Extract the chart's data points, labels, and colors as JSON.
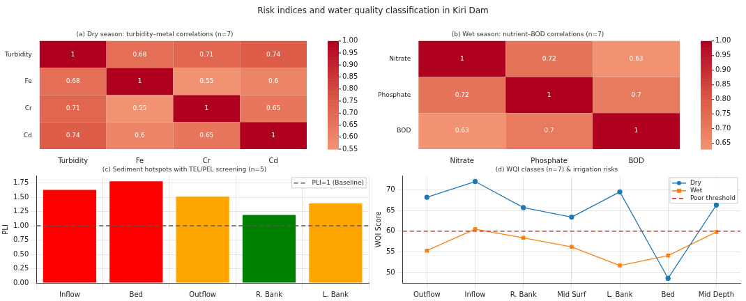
{
  "chart_data": [
    {
      "type": "heatmap",
      "title": "Risk indices and water quality classification in Kiri Dam",
      "subtitle": "(a) Dry season: turbidity–metal correlations (n=7)",
      "categories": [
        "Turbidity",
        "Fe",
        "Cr",
        "Cd"
      ],
      "y_categories": [
        "Turbidity",
        "Fe",
        "Cr",
        "Cd"
      ],
      "cells": [
        [
          1,
          0.68,
          0.71,
          0.74
        ],
        [
          0.68,
          1,
          0.55,
          0.6
        ],
        [
          0.71,
          0.55,
          1,
          0.65
        ],
        [
          0.74,
          0.6,
          0.65,
          1
        ]
      ],
      "clim": [
        0.55,
        1
      ],
      "cticks": [
        {
          "value": 0.55,
          "label": "0.55"
        },
        {
          "value": 0.6,
          "label": "0.60"
        },
        {
          "value": 0.65,
          "label": "0.65"
        },
        {
          "value": 0.7,
          "label": "0.70"
        },
        {
          "value": 0.75,
          "label": "0.75"
        },
        {
          "value": 0.8,
          "label": "0.80"
        },
        {
          "value": 0.85,
          "label": "0.85"
        },
        {
          "value": 0.9,
          "label": "0.90"
        },
        {
          "value": 0.95,
          "label": "0.95"
        },
        {
          "value": 1,
          "label": "1.00"
        }
      ],
      "data_labels": true
    },
    {
      "type": "heatmap",
      "title": "(b) Wet season: nutrient–BOD correlations (n=7)",
      "categories": [
        "Nitrate",
        "Phosphate",
        "BOD"
      ],
      "y_categories": [
        "Nitrate",
        "Phosphate",
        "BOD"
      ],
      "cells": [
        [
          1,
          0.72,
          0.63
        ],
        [
          0.72,
          1,
          0.7
        ],
        [
          0.63,
          0.7,
          1
        ]
      ],
      "clim": [
        0.63,
        1
      ],
      "cticks": [
        {
          "value": 0.65,
          "label": "0.65"
        },
        {
          "value": 0.7,
          "label": "0.70"
        },
        {
          "value": 0.75,
          "label": "0.75"
        },
        {
          "value": 0.8,
          "label": "0.80"
        },
        {
          "value": 0.85,
          "label": "0.85"
        },
        {
          "value": 0.9,
          "label": "0.90"
        },
        {
          "value": 0.95,
          "label": "0.95"
        },
        {
          "value": 1,
          "label": "1.00"
        }
      ],
      "data_labels": true
    },
    {
      "type": "bar",
      "title": "(c) Sediment hotspots with TEL/PEL screening (n=5)",
      "ylabel": "PLI",
      "categories": [
        "Inflow",
        "Bed",
        "Outflow",
        "R. Bank",
        "L. Bank"
      ],
      "values": [
        1.63,
        1.78,
        1.51,
        1.19,
        1.39
      ],
      "colors": [
        "#ff0000",
        "#ff0000",
        "#ffa500",
        "#008000",
        "#ffa500"
      ],
      "ylim": [
        0,
        1.87
      ],
      "yticks": [
        {
          "value": 0,
          "label": "0.00"
        },
        {
          "value": 0.25,
          "label": "0.25"
        },
        {
          "value": 0.5,
          "label": "0.50"
        },
        {
          "value": 0.75,
          "label": "0.75"
        },
        {
          "value": 1,
          "label": "1.00"
        },
        {
          "value": 1.25,
          "label": "1.25"
        },
        {
          "value": 1.5,
          "label": "1.50"
        },
        {
          "value": 1.75,
          "label": "1.75"
        }
      ],
      "ref_lines": [
        {
          "axis": "y",
          "value": 1,
          "label": "PLI=1 (Baseline)",
          "color": "#555555",
          "line_style": "dashed"
        }
      ],
      "grid": true,
      "legend": "top right"
    },
    {
      "type": "line",
      "title": "(d) WQI classes (n=7) & irrigation risks",
      "ylabel": "WQI Score",
      "categories": [
        "Outflow",
        "Inflow",
        "R. Bank",
        "Mid Surf",
        "L. Bank",
        "Bed",
        "Mid Depth"
      ],
      "series": [
        {
          "name": "Dry",
          "color": "#1f77b4",
          "marker": "circle",
          "values": [
            68.2,
            72.0,
            65.7,
            63.4,
            69.5,
            48.6,
            66.3
          ]
        },
        {
          "name": "Wet",
          "color": "#ff7f0e",
          "marker": "square",
          "values": [
            55.3,
            60.5,
            58.4,
            56.2,
            51.7,
            54.1,
            59.8
          ]
        }
      ],
      "ylim": [
        47.5,
        73.3
      ],
      "yticks": [
        50,
        55,
        60,
        65,
        70
      ],
      "ref_lines": [
        {
          "axis": "y",
          "value": 60,
          "label": "Poor threshold",
          "color": "#d62728",
          "line_style": "dashed"
        }
      ],
      "grid": true,
      "legend": "top right"
    }
  ]
}
